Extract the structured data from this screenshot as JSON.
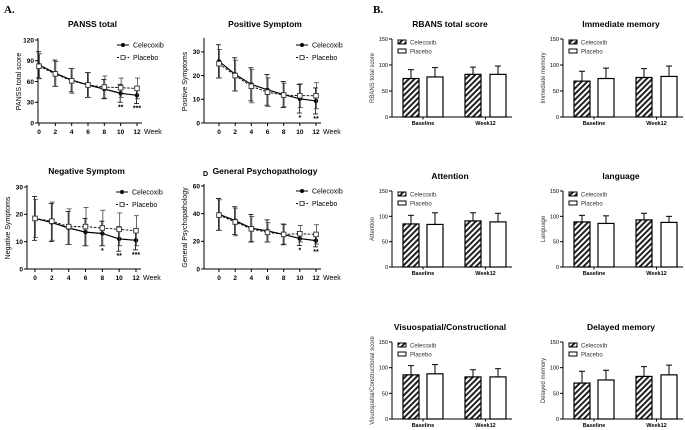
{
  "section_labels": {
    "a": "A.",
    "b": "B.",
    "d": "D"
  },
  "chart_data": [
    {
      "type": "line",
      "title": "PANSS total",
      "ylabel": "PANSS total score",
      "xlabel": "Week",
      "ylim": [
        0,
        120
      ],
      "yticks": [
        0,
        30,
        60,
        90,
        120
      ],
      "x": [
        0,
        2,
        4,
        6,
        8,
        10,
        12
      ],
      "series": [
        {
          "name": "Celecoxib",
          "style": "solid, filled circle",
          "values": [
            84,
            72,
            62,
            55,
            49,
            43,
            40
          ],
          "sd": [
            19,
            19,
            17,
            18,
            14,
            13,
            12
          ]
        },
        {
          "name": "Placebo",
          "style": "dashed, open square",
          "values": [
            82,
            71,
            61,
            55,
            52,
            51,
            50
          ],
          "sd": [
            18,
            18,
            18,
            18,
            16,
            14,
            15
          ]
        }
      ],
      "significance": [
        "",
        "",
        "",
        "",
        "",
        "**",
        "***"
      ],
      "legend": "top-right"
    },
    {
      "type": "line",
      "title": "Positive Symptom",
      "ylabel": "Positive Symptoms",
      "xlabel": "Week",
      "ylim": [
        0,
        35
      ],
      "yticks": [
        0,
        10,
        20,
        30
      ],
      "x": [
        0,
        2,
        4,
        6,
        8,
        10,
        12
      ],
      "series": [
        {
          "name": "Celecoxib",
          "style": "solid, filled circle",
          "values": [
            26,
            20.5,
            16.3,
            14,
            12,
            10.2,
            9.3
          ],
          "sd": [
            7,
            7,
            7,
            6.5,
            5.5,
            6,
            5.5
          ]
        },
        {
          "name": "Placebo",
          "style": "dashed, open square",
          "values": [
            25,
            20,
            15.5,
            13,
            11.8,
            11.5,
            11.5
          ],
          "sd": [
            6,
            6.5,
            7,
            6,
            5,
            5,
            5.5
          ]
        }
      ],
      "significance": [
        "",
        "",
        "",
        "",
        "",
        "*",
        "**"
      ],
      "legend": "top-right"
    },
    {
      "type": "line",
      "title": "Negative Symptom",
      "ylabel": "Negative Symptoms",
      "xlabel": "Week",
      "ylim": [
        0,
        30
      ],
      "yticks": [
        0,
        10,
        20,
        30
      ],
      "x": [
        0,
        2,
        4,
        6,
        8,
        10,
        12
      ],
      "series": [
        {
          "name": "Celecoxib",
          "style": "solid, filled circle",
          "values": [
            18.5,
            17,
            15,
            13.5,
            13,
            11,
            10.5
          ],
          "sd": [
            8,
            7,
            6,
            5,
            4.5,
            4.5,
            3.5
          ]
        },
        {
          "name": "Placebo",
          "style": "dashed, open square",
          "values": [
            18.5,
            17.5,
            15.5,
            15.5,
            15,
            14.5,
            14
          ],
          "sd": [
            7,
            7,
            6.5,
            7,
            6.5,
            6,
            5.5
          ]
        }
      ],
      "significance": [
        "",
        "",
        "",
        "",
        "*",
        "**",
        "***"
      ],
      "legend": "top-right"
    },
    {
      "type": "line",
      "title": "General Psychopathology",
      "ylabel": "General Psychopathology",
      "xlabel": "Week",
      "ylim": [
        0,
        60
      ],
      "yticks": [
        0,
        20,
        40,
        60
      ],
      "x": [
        0,
        2,
        4,
        6,
        8,
        10,
        12
      ],
      "series": [
        {
          "name": "Celecoxib",
          "style": "solid, filled circle",
          "values": [
            39.5,
            35,
            29.5,
            27.5,
            25,
            22,
            20.5
          ],
          "sd": [
            11.5,
            10,
            10,
            8,
            7.5,
            5,
            4.5
          ]
        },
        {
          "name": "Placebo",
          "style": "dashed, open square",
          "values": [
            39,
            34,
            29,
            26.5,
            25,
            25.5,
            25
          ],
          "sd": [
            11,
            10,
            9,
            7,
            7,
            6,
            7
          ]
        }
      ],
      "significance": [
        "",
        "",
        "",
        "",
        "",
        "*",
        "**"
      ],
      "legend": "top-right"
    },
    {
      "type": "bar",
      "title": "RBANS total score",
      "ylabel": "RBANS total score",
      "ylim": [
        0,
        150
      ],
      "yticks": [
        0,
        50,
        100,
        150
      ],
      "categories": [
        "Baseline",
        "Week12"
      ],
      "series": [
        {
          "name": "Celecoxib",
          "fill": "hatched",
          "values": [
            74,
            82
          ],
          "err_top": [
            91,
            96
          ]
        },
        {
          "name": "Placebo",
          "fill": "white",
          "values": [
            77,
            82
          ],
          "err_top": [
            95,
            98
          ]
        }
      ],
      "legend": "top-left"
    },
    {
      "type": "bar",
      "title": "Immediate memory",
      "ylabel": "Immediate memory",
      "ylim": [
        0,
        150
      ],
      "yticks": [
        0,
        50,
        100,
        150
      ],
      "categories": [
        "Baseline",
        "Week12"
      ],
      "series": [
        {
          "name": "Celecoxib",
          "fill": "hatched",
          "values": [
            69,
            76
          ],
          "err_top": [
            88,
            93
          ]
        },
        {
          "name": "Placebo",
          "fill": "white",
          "values": [
            74,
            78
          ],
          "err_top": [
            94,
            98
          ]
        }
      ],
      "legend": "top-left"
    },
    {
      "type": "bar",
      "title": "Attention",
      "ylabel": "Attention",
      "ylim": [
        0,
        150
      ],
      "yticks": [
        0,
        50,
        100,
        150
      ],
      "categories": [
        "Baseline",
        "Week12"
      ],
      "series": [
        {
          "name": "Celecoxib",
          "fill": "hatched",
          "values": [
            85,
            91
          ],
          "err_top": [
            102,
            107
          ]
        },
        {
          "name": "Placebo",
          "fill": "white",
          "values": [
            84,
            89
          ],
          "err_top": [
            107,
            106
          ]
        }
      ],
      "legend": "top-left"
    },
    {
      "type": "bar",
      "title": "language",
      "ylabel": "Language",
      "ylim": [
        0,
        150
      ],
      "yticks": [
        0,
        50,
        100,
        150
      ],
      "categories": [
        "Baseline",
        "Week12"
      ],
      "series": [
        {
          "name": "Celecoxib",
          "fill": "hatched",
          "values": [
            89,
            93
          ],
          "err_top": [
            102,
            106
          ]
        },
        {
          "name": "Placebo",
          "fill": "white",
          "values": [
            86,
            88
          ],
          "err_top": [
            101,
            100
          ]
        }
      ],
      "legend": "top-left"
    },
    {
      "type": "bar",
      "title": "Visuospatial/Constructional",
      "ylabel": "Visuospatial/Constructional score",
      "ylim": [
        0,
        150
      ],
      "yticks": [
        0,
        50,
        100,
        150
      ],
      "categories": [
        "Baseline",
        "Week12"
      ],
      "series": [
        {
          "name": "Celecoxib",
          "fill": "hatched",
          "values": [
            86,
            82
          ],
          "err_top": [
            104,
            96
          ]
        },
        {
          "name": "Placebo",
          "fill": "white",
          "values": [
            88,
            82
          ],
          "err_top": [
            106,
            98
          ]
        }
      ],
      "legend": "top-left"
    },
    {
      "type": "bar",
      "title": "Delayed memory",
      "ylabel": "Delayed memory",
      "ylim": [
        0,
        150
      ],
      "yticks": [
        0,
        50,
        100,
        150
      ],
      "categories": [
        "Baseline",
        "Week12"
      ],
      "series": [
        {
          "name": "Celecoxib",
          "fill": "hatched",
          "values": [
            70,
            83
          ],
          "err_top": [
            93,
            102
          ]
        },
        {
          "name": "Placebo",
          "fill": "white",
          "values": [
            76,
            86
          ],
          "err_top": [
            95,
            105
          ]
        }
      ],
      "legend": "top-left"
    }
  ]
}
